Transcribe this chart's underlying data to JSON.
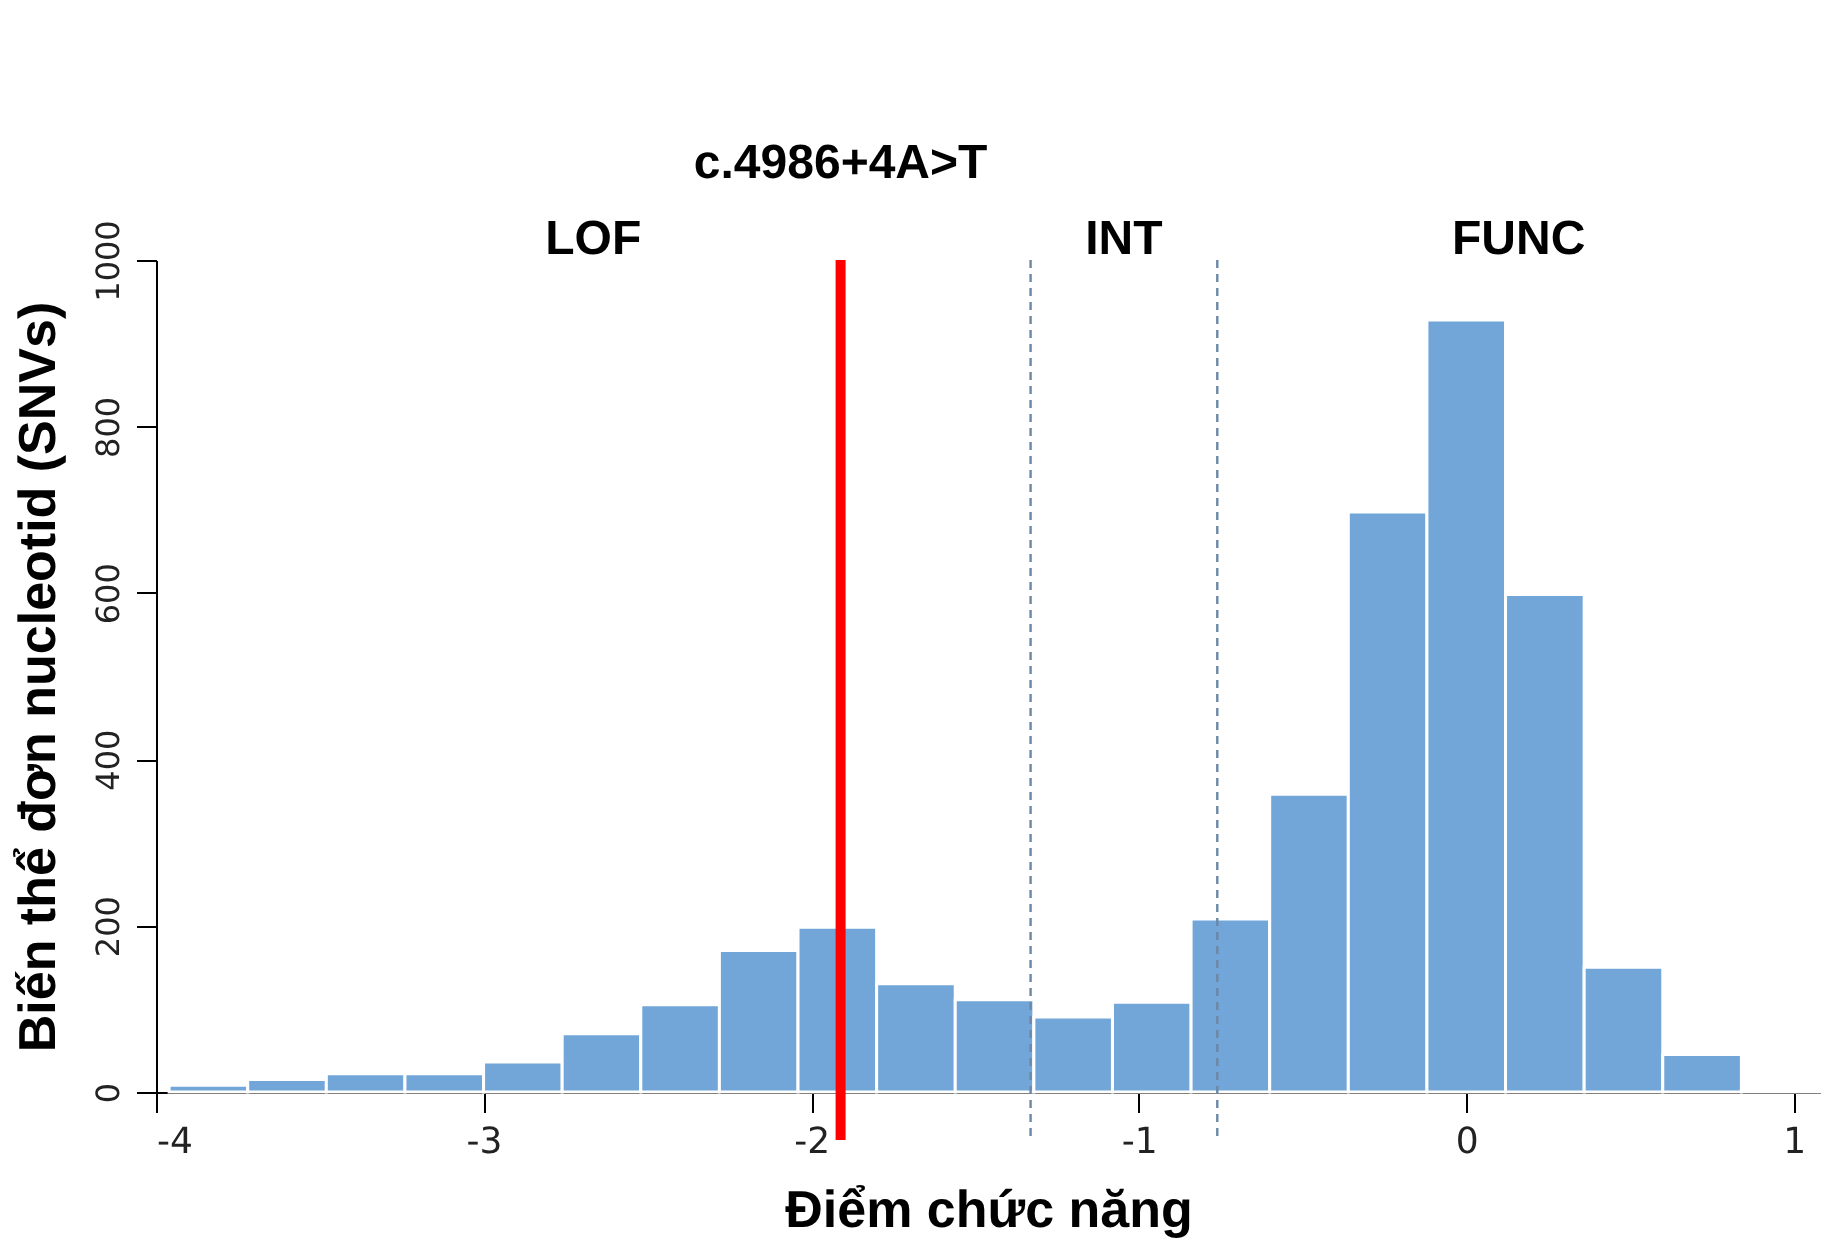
{
  "chart_data": {
    "type": "histogram",
    "xlabel": "Điểm chức năng",
    "ylabel": "Biến thể đơn nucleotid (SNVs)",
    "bins": [
      -3.96,
      -3.72,
      -3.48,
      -3.24,
      -3.0,
      -2.76,
      -2.52,
      -2.28,
      -2.04,
      -1.8,
      -1.56,
      -1.32,
      -1.08,
      -0.84,
      -0.6,
      -0.36,
      -0.12,
      0.12,
      0.36,
      0.6,
      0.84,
      1.08
    ],
    "values": [
      8,
      15,
      22,
      22,
      36,
      70,
      105,
      170,
      198,
      130,
      111,
      90,
      108,
      208,
      358,
      697,
      928,
      598,
      150,
      45,
      2
    ],
    "color": "#72a6d8",
    "xlim": [
      -4,
      1.08
    ],
    "xticks": [
      {
        "value": -4,
        "label": "-4"
      },
      {
        "value": -3,
        "label": "-3"
      },
      {
        "value": -2,
        "label": "-2"
      },
      {
        "value": -1,
        "label": "-1"
      },
      {
        "value": 0,
        "label": "0"
      },
      {
        "value": 1,
        "label": "1"
      }
    ],
    "ylim": [
      0,
      1000
    ],
    "yticks": [
      {
        "value": 0,
        "label": "0"
      },
      {
        "value": 200,
        "label": "200"
      },
      {
        "value": 400,
        "label": "400"
      },
      {
        "value": 600,
        "label": "600"
      },
      {
        "value": 800,
        "label": "800"
      },
      {
        "value": 1000,
        "label": "1000"
      }
    ],
    "grid": false,
    "ref_lines": [
      {
        "axis": "x",
        "value": -1.91,
        "label": "c.4986+4A>T",
        "color": "#ff0000",
        "line_style": "solid"
      },
      {
        "axis": "x",
        "value": -1.33,
        "label": null,
        "color": "#6b88a6",
        "line_style": "dashed"
      },
      {
        "axis": "x",
        "value": -0.76,
        "label": null,
        "color": "#6b88a6",
        "line_style": "dashed"
      }
    ],
    "annotations": [
      "LOF",
      "INT",
      "FUNC"
    ]
  }
}
